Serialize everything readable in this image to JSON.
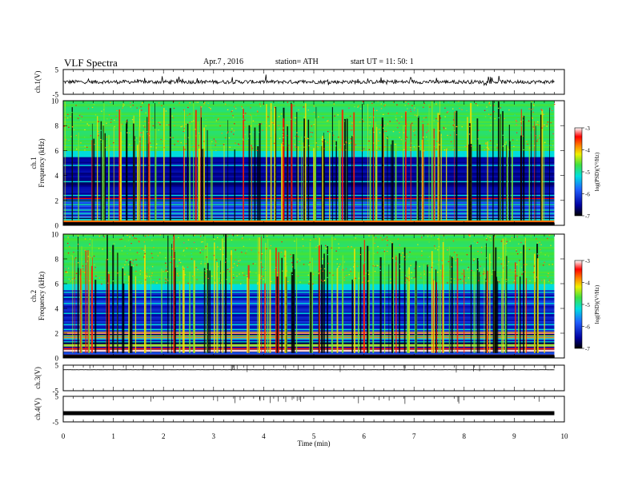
{
  "header": {
    "title": "VLF  Spectra",
    "date": "Apr.7  , 2016",
    "station": "station= ATH",
    "start": "start  UT  =    11: 50: 1"
  },
  "chart_data": [
    {
      "type": "line",
      "panel": "ch1-waveform",
      "ylabel": "ch.1(V)",
      "ylim": [
        -5,
        5
      ],
      "yticks": [
        "5",
        "-5"
      ],
      "xlim": [
        0,
        10
      ],
      "series": [
        {
          "x_range": [
            0,
            9.8
          ],
          "baseline": 0,
          "noise_amplitude": 1.5
        }
      ]
    },
    {
      "type": "heatmap",
      "panel": "ch1-spectrogram",
      "ylabel": [
        "ch.1",
        "Frequency  (kHz)"
      ],
      "ylim": [
        0,
        10
      ],
      "yticks": [
        "0",
        "2",
        "4",
        "6",
        "8",
        "10"
      ],
      "xlim": [
        0,
        10
      ],
      "data_x_end": 9.8,
      "colorbar": {
        "label": "log(PSD)(V²/Hz)",
        "range": [
          -7,
          -3
        ],
        "ticks": [
          "-3",
          "-4",
          "-5",
          "-6",
          "-7"
        ]
      },
      "description_levels": {
        "band_0_2kHz": "mixed lines",
        "band_2_6kHz": -6.5,
        "band_6_10kHz": -5.3
      }
    },
    {
      "type": "heatmap",
      "panel": "ch2-spectrogram",
      "ylabel": [
        "ch.2",
        "Frequency  (kHz)"
      ],
      "ylim": [
        0,
        10
      ],
      "yticks": [
        "0",
        "2",
        "4",
        "6",
        "8",
        "10"
      ],
      "xlim": [
        0,
        10
      ],
      "data_x_end": 9.8,
      "colorbar": {
        "label": "log(PSD)(V²/Hz)",
        "range": [
          -7,
          -3
        ],
        "ticks": [
          "-3",
          "-4",
          "-5",
          "-6",
          "-7"
        ]
      },
      "description_levels": {
        "band_0_2kHz": "mixed lines",
        "band_2_6kHz": -6.3,
        "band_6_10kHz": -5.3
      }
    },
    {
      "type": "line",
      "panel": "ch3-waveform",
      "ylabel": "ch.3(V)",
      "ylim": [
        -5,
        5
      ],
      "yticks": [
        "5",
        "-5"
      ],
      "xlim": [
        0,
        10
      ],
      "series": [
        {
          "x_range": [
            0,
            9.8
          ],
          "baseline": 3.2,
          "noise_amplitude": 0.05
        }
      ]
    },
    {
      "type": "line",
      "panel": "ch4-waveform",
      "ylabel": "ch.4(V)",
      "ylim": [
        -5,
        5
      ],
      "yticks": [
        "5",
        "-5"
      ],
      "xlim": [
        0,
        10
      ],
      "series": [
        {
          "x_range": [
            0,
            9.8
          ],
          "baseline": -1.6,
          "noise_amplitude": 0.4
        }
      ]
    }
  ],
  "xaxis": {
    "label": "Time  (min)",
    "ticks": [
      "0",
      "1",
      "2",
      "3",
      "4",
      "5",
      "6",
      "7",
      "8",
      "9",
      "10"
    ]
  }
}
